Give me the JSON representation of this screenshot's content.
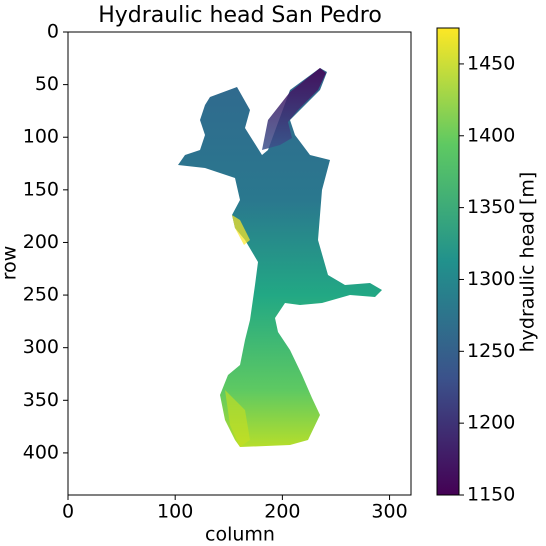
{
  "chart_data": {
    "type": "image",
    "title": "Hydraulic head San Pedro",
    "xlabel": "column",
    "ylabel": "row",
    "xlim": [
      0,
      320
    ],
    "ylim": [
      440,
      0
    ],
    "xticks": [
      0,
      100,
      200,
      300
    ],
    "yticks": [
      0,
      50,
      100,
      150,
      200,
      250,
      300,
      350,
      400
    ],
    "colormap": "viridis",
    "colorbar_label": "hydraulic head [m]",
    "clim": [
      1150,
      1475
    ],
    "colorbar_ticks": [
      1150,
      1200,
      1250,
      1300,
      1350,
      1400,
      1450
    ]
  }
}
